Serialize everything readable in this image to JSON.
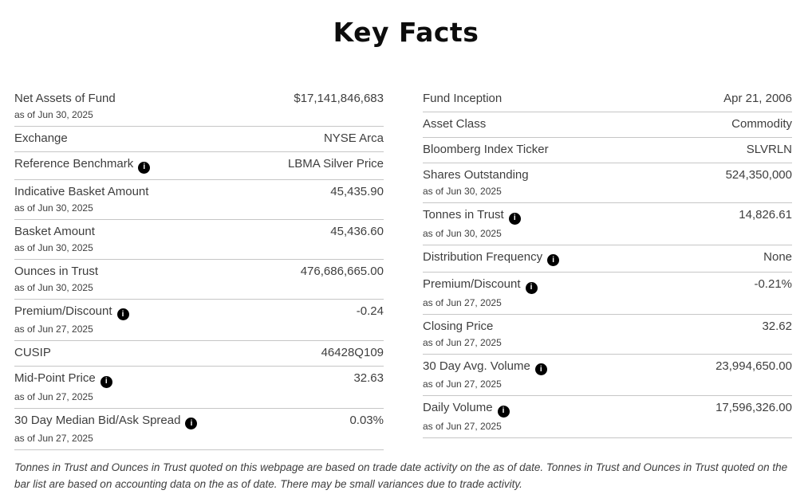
{
  "page": {
    "title": "Key Facts"
  },
  "colors": {
    "text": "#3e3e3e",
    "title": "#0d0d0d",
    "divider": "#c6c6c6",
    "info_icon_bg": "#000000",
    "info_icon_fg": "#ffffff",
    "background": "#ffffff"
  },
  "icons": {
    "info_glyph": "i",
    "info_name": "info-icon"
  },
  "table": {
    "left_rows": [
      {
        "label": "Net Assets of Fund",
        "info": false,
        "as_of": "as of Jun 30, 2025",
        "value": "$17,141,846,683"
      },
      {
        "label": "Exchange",
        "info": false,
        "as_of": null,
        "value": "NYSE Arca"
      },
      {
        "label": "Reference Benchmark",
        "info": true,
        "as_of": null,
        "value": "LBMA Silver Price"
      },
      {
        "label": "Indicative Basket Amount",
        "info": false,
        "as_of": "as of Jun 30, 2025",
        "value": "45,435.90"
      },
      {
        "label": "Basket Amount",
        "info": false,
        "as_of": "as of Jun 30, 2025",
        "value": "45,436.60"
      },
      {
        "label": "Ounces in Trust",
        "info": false,
        "as_of": "as of Jun 30, 2025",
        "value": "476,686,665.00"
      },
      {
        "label": "Premium/Discount",
        "info": true,
        "as_of": "as of Jun 27, 2025",
        "value": "-0.24"
      },
      {
        "label": "CUSIP",
        "info": false,
        "as_of": null,
        "value": "46428Q109"
      },
      {
        "label": "Mid-Point Price",
        "info": true,
        "as_of": "as of Jun 27, 2025",
        "value": "32.63"
      },
      {
        "label": "30 Day Median Bid/Ask Spread",
        "info": true,
        "as_of": "as of Jun 27, 2025",
        "value": "0.03%"
      }
    ],
    "right_rows": [
      {
        "label": "Fund Inception",
        "info": false,
        "as_of": null,
        "value": "Apr 21, 2006"
      },
      {
        "label": "Asset Class",
        "info": false,
        "as_of": null,
        "value": "Commodity"
      },
      {
        "label": "Bloomberg Index Ticker",
        "info": false,
        "as_of": null,
        "value": "SLVRLN"
      },
      {
        "label": "Shares Outstanding",
        "info": false,
        "as_of": "as of Jun 30, 2025",
        "value": "524,350,000"
      },
      {
        "label": "Tonnes in Trust",
        "info": true,
        "as_of": "as of Jun 30, 2025",
        "value": "14,826.61"
      },
      {
        "label": "Distribution Frequency",
        "info": true,
        "as_of": null,
        "value": "None"
      },
      {
        "label": "Premium/Discount",
        "info": true,
        "as_of": "as of Jun 27, 2025",
        "value": "-0.21%"
      },
      {
        "label": "Closing Price",
        "info": false,
        "as_of": "as of Jun 27, 2025",
        "value": "32.62"
      },
      {
        "label": "30 Day Avg. Volume",
        "info": true,
        "as_of": "as of Jun 27, 2025",
        "value": "23,994,650.00"
      },
      {
        "label": "Daily Volume",
        "info": true,
        "as_of": "as of Jun 27, 2025",
        "value": "17,596,326.00"
      }
    ]
  },
  "footnote": "Tonnes in Trust and Ounces in Trust quoted on this webpage are based on trade date activity on the as of date. Tonnes in Trust and Ounces in Trust quoted on the bar list are based on accounting data on the as of date. There may be small variances due to trade activity."
}
